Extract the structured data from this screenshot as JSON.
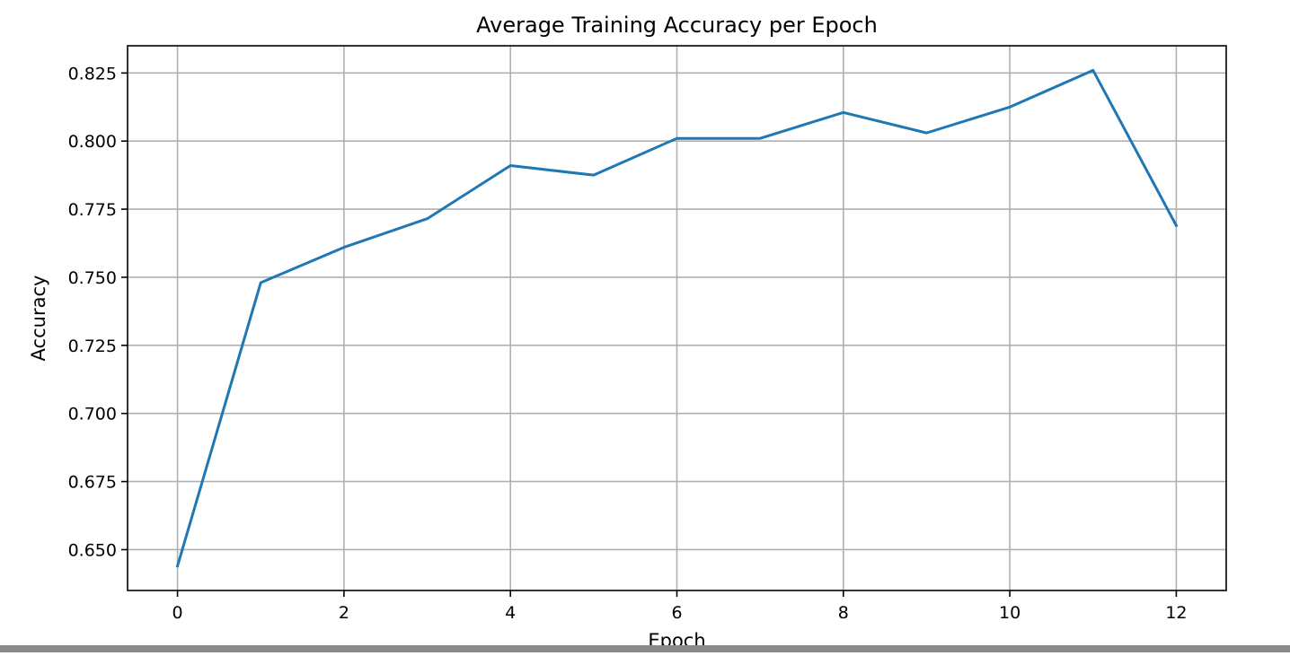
{
  "chart_data": {
    "type": "line",
    "title": "Average Training Accuracy per Epoch",
    "xlabel": "Epoch",
    "ylabel": "Accuracy",
    "xlim": [
      -0.6,
      12.6
    ],
    "ylim": [
      0.635,
      0.835
    ],
    "x_ticks": [
      0,
      2,
      4,
      6,
      8,
      10,
      12
    ],
    "x_tick_labels": [
      "0",
      "2",
      "4",
      "6",
      "8",
      "10",
      "12"
    ],
    "y_ticks": [
      0.65,
      0.675,
      0.7,
      0.725,
      0.75,
      0.775,
      0.8,
      0.825
    ],
    "y_tick_labels": [
      "0.650",
      "0.675",
      "0.700",
      "0.725",
      "0.750",
      "0.775",
      "0.800",
      "0.825"
    ],
    "grid": true,
    "series": [
      {
        "color": "#1f77b4",
        "x": [
          0,
          1,
          2,
          3,
          4,
          5,
          6,
          7,
          8,
          9,
          10,
          11,
          12
        ],
        "values": [
          0.644,
          0.748,
          0.761,
          0.7715,
          0.791,
          0.7875,
          0.801,
          0.801,
          0.8105,
          0.803,
          0.8125,
          0.826,
          0.769
        ]
      }
    ]
  }
}
